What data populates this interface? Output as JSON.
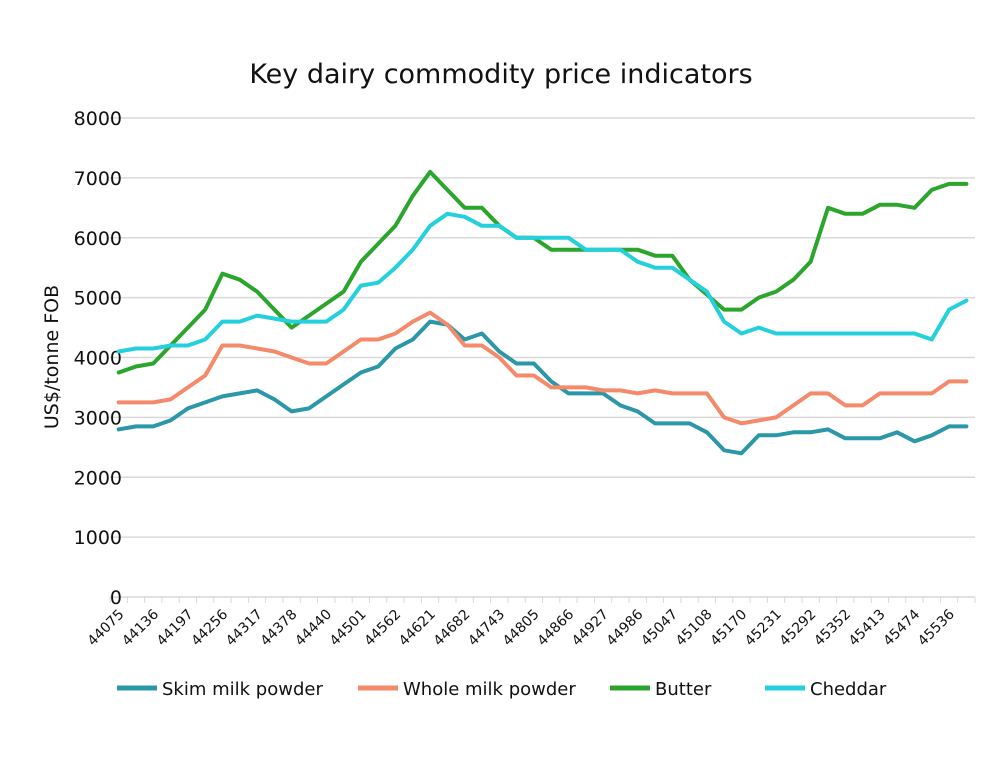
{
  "chart_data": {
    "type": "line",
    "title": "Key dairy commodity price indicators",
    "xlabel": "",
    "ylabel": "US$/tonne FOB",
    "ylim": [
      0,
      8000
    ],
    "yticks": [
      0,
      1000,
      2000,
      3000,
      4000,
      5000,
      6000,
      7000,
      8000
    ],
    "grid": true,
    "legend": "bottom",
    "x": [
      44075,
      44105,
      44136,
      44166,
      44197,
      44228,
      44256,
      44287,
      44317,
      44348,
      44378,
      44409,
      44440,
      44470,
      44501,
      44531,
      44562,
      44593,
      44621,
      44652,
      44682,
      44713,
      44743,
      44774,
      44805,
      44835,
      44866,
      44896,
      44927,
      44958,
      44986,
      45017,
      45047,
      45078,
      45108,
      45139,
      45170,
      45200,
      45231,
      45261,
      45292,
      45323,
      45352,
      45383,
      45413,
      45444,
      45474,
      45505,
      45536,
      45566
    ],
    "xtick_labels": [
      "44075",
      "44136",
      "44197",
      "44256",
      "44317",
      "44378",
      "44440",
      "44501",
      "44562",
      "44621",
      "44682",
      "44743",
      "44805",
      "44866",
      "44927",
      "44986",
      "45047",
      "45108",
      "45170",
      "45231",
      "45292",
      "45352",
      "45413",
      "45474",
      "45536"
    ],
    "series": [
      {
        "name": "Skim milk powder",
        "color": "#2b97a8",
        "values": [
          2800,
          2850,
          2850,
          2950,
          3150,
          3250,
          3350,
          3400,
          3450,
          3300,
          3100,
          3150,
          3350,
          3550,
          3750,
          3850,
          4150,
          4300,
          4600,
          4550,
          4300,
          4400,
          4100,
          3900,
          3900,
          3600,
          3400,
          3400,
          3400,
          3200,
          3100,
          2900,
          2900,
          2900,
          2750,
          2450,
          2400,
          2700,
          2700,
          2750,
          2750,
          2800,
          2650,
          2650,
          2650,
          2750,
          2600,
          2700,
          2850,
          2850
        ]
      },
      {
        "name": "Whole milk powder",
        "color": "#f58a6a",
        "values": [
          3250,
          3250,
          3250,
          3300,
          3500,
          3700,
          4200,
          4200,
          4150,
          4100,
          4000,
          3900,
          3900,
          4100,
          4300,
          4300,
          4400,
          4600,
          4750,
          4550,
          4200,
          4200,
          4000,
          3700,
          3700,
          3500,
          3500,
          3500,
          3450,
          3450,
          3400,
          3450,
          3400,
          3400,
          3400,
          3000,
          2900,
          2950,
          3000,
          3200,
          3400,
          3400,
          3200,
          3200,
          3400,
          3400,
          3400,
          3400,
          3600,
          3600
        ]
      },
      {
        "name": "Butter",
        "color": "#2ca52c",
        "values": [
          3750,
          3850,
          3900,
          4200,
          4500,
          4800,
          5400,
          5300,
          5100,
          4800,
          4500,
          4700,
          4900,
          5100,
          5600,
          5900,
          6200,
          6700,
          7100,
          6800,
          6500,
          6500,
          6200,
          6000,
          6000,
          5800,
          5800,
          5800,
          5800,
          5800,
          5800,
          5700,
          5700,
          5300,
          5050,
          4800,
          4800,
          5000,
          5100,
          5300,
          5600,
          6500,
          6400,
          6400,
          6550,
          6550,
          6500,
          6800,
          6900,
          6900
        ]
      },
      {
        "name": "Cheddar",
        "color": "#24d0dc",
        "values": [
          4100,
          4150,
          4150,
          4200,
          4200,
          4300,
          4600,
          4600,
          4700,
          4650,
          4600,
          4600,
          4600,
          4800,
          5200,
          5250,
          5500,
          5800,
          6200,
          6400,
          6350,
          6200,
          6200,
          6000,
          6000,
          6000,
          6000,
          5800,
          5800,
          5800,
          5600,
          5500,
          5500,
          5300,
          5100,
          4600,
          4400,
          4500,
          4400,
          4400,
          4400,
          4400,
          4400,
          4400,
          4400,
          4400,
          4400,
          4300,
          4800,
          4950
        ]
      }
    ]
  }
}
